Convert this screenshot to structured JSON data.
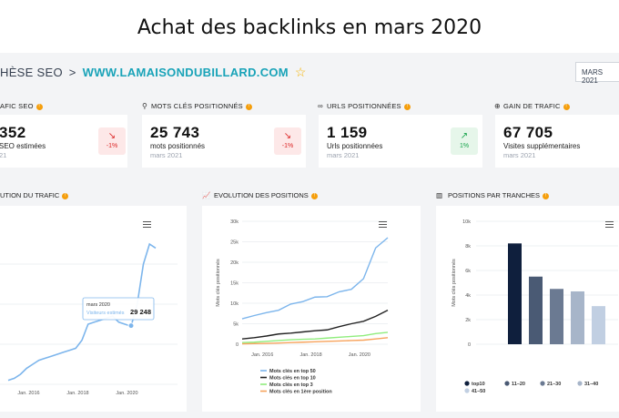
{
  "banner": {
    "title": "Achat des backlinks en mars 2020"
  },
  "breadcrumb": {
    "project": "HÈSE SEO",
    "separator": ">",
    "domain": "WWW.LAMAISONDUBILLARD.COM",
    "star_icon": "star-icon"
  },
  "date_selector": {
    "value": "MARS 2021"
  },
  "sections": {
    "trafic_seo": "AFIC SEO",
    "mots_cles": "MOTS CLÉS POSITIONNÉS",
    "urls": "URLS POSITIONNÉES",
    "gain": "GAIN DE TRAFIC"
  },
  "cards": [
    {
      "value": "352",
      "label": "SEO estimées",
      "date": "21",
      "trend": "down",
      "change": "-1%"
    },
    {
      "value": "25 743",
      "label": "mots positionnés",
      "date": "mars 2021",
      "trend": "down",
      "change": "-1%"
    },
    {
      "value": "1 159",
      "label": "Urls positionnées",
      "date": "mars 2021",
      "trend": "up",
      "change": "1%"
    },
    {
      "value": "67 705",
      "label": "Visites supplémentaires",
      "date": "mars 2021"
    }
  ],
  "charts": {
    "traffic": {
      "title": "UTION DU TRAFIC",
      "tooltip": {
        "date": "mars 2020",
        "label": "Visiteurs estimés",
        "value": "29 248"
      }
    },
    "positions": {
      "title": "EVOLUTION DES POSITIONS",
      "ylabel": "Mots clés positionnés"
    },
    "tranches": {
      "title": "POSITIONS PAR TRANCHES",
      "ylabel": "Mots clés positionnés"
    }
  },
  "chart_data": [
    {
      "type": "line",
      "title": "",
      "x_ticks": [
        "Jan. 2016",
        "Jan. 2018",
        "Jan. 2020"
      ],
      "series": [
        {
          "x": [
            "2015-03",
            "2015-06",
            "2015-09",
            "2015-12",
            "2016-03",
            "2016-06",
            "2016-09",
            "2016-12",
            "2017-03",
            "2017-06",
            "2017-09",
            "2017-12",
            "2018-03",
            "2018-06",
            "2018-09",
            "2018-12",
            "2019-03",
            "2019-06",
            "2019-09",
            "2019-12",
            "2020-03",
            "2020-06",
            "2020-09",
            "2020-12",
            "2021-03"
          ],
          "y": [
            2,
            3,
            5,
            8,
            10,
            12,
            13,
            14,
            15,
            16,
            17,
            18,
            22,
            30,
            31,
            32,
            33,
            34,
            31,
            30,
            29,
            40,
            60,
            70,
            68
          ]
        }
      ],
      "tooltip": {
        "x": "mars 2020",
        "y": 29248
      }
    },
    {
      "type": "line",
      "title": "",
      "ylabel": "Mots clés positionnés",
      "x_ticks": [
        "Jan. 2016",
        "Jan. 2018",
        "Jan. 2020"
      ],
      "y_ticks": [
        "0",
        "5k",
        "10k",
        "15k",
        "20k",
        "25k",
        "30k"
      ],
      "ylim": [
        0,
        30000
      ],
      "legend_position": "bottom",
      "x": [
        "2015-03",
        "2015-09",
        "2016-03",
        "2016-09",
        "2017-03",
        "2017-09",
        "2018-03",
        "2018-09",
        "2019-03",
        "2019-09",
        "2020-03",
        "2020-09",
        "2021-03"
      ],
      "series": [
        {
          "name": "Mots clés en top 50",
          "color": "#7cb5ec",
          "values": [
            6200,
            7000,
            7700,
            8300,
            9800,
            10400,
            11500,
            11600,
            12800,
            13400,
            16000,
            23500,
            26000
          ]
        },
        {
          "name": "Mots clés en top 10",
          "color": "#222222",
          "values": [
            1300,
            1600,
            2000,
            2500,
            2700,
            3000,
            3300,
            3500,
            4300,
            5000,
            5600,
            6800,
            8300
          ]
        },
        {
          "name": "Mots clés en top 3",
          "color": "#90ed7d",
          "values": [
            400,
            500,
            700,
            900,
            1100,
            1200,
            1300,
            1500,
            1700,
            1900,
            2100,
            2600,
            2900
          ]
        },
        {
          "name": "Mots clés en 1ère position",
          "color": "#f7a35c",
          "values": [
            100,
            150,
            200,
            300,
            400,
            500,
            600,
            700,
            800,
            900,
            1000,
            1300,
            1600
          ]
        }
      ]
    },
    {
      "type": "bar",
      "title": "",
      "ylabel": "Mots clés positionnés",
      "y_ticks": [
        "0",
        "2k",
        "4k",
        "6k",
        "8k",
        "10k"
      ],
      "ylim": [
        0,
        10000
      ],
      "legend_position": "bottom",
      "categories": [
        "top10",
        "11–20",
        "21–30",
        "31–40",
        "41–50"
      ],
      "values": [
        8200,
        5500,
        4500,
        4300,
        3100
      ],
      "colors": [
        "#0f1f3d",
        "#4a5a74",
        "#6b7a92",
        "#a7b5c9",
        "#c1cfe2"
      ]
    }
  ]
}
